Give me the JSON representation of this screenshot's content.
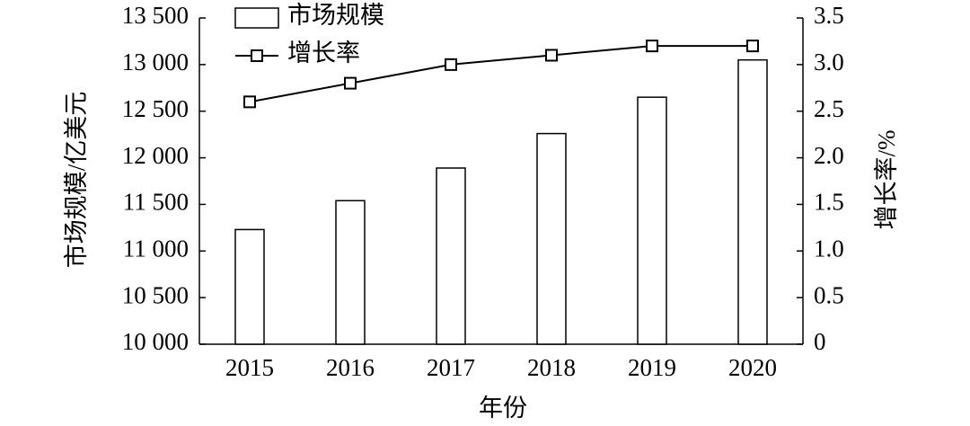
{
  "chart_data": {
    "type": "bar",
    "categories": [
      "2015",
      "2016",
      "2017",
      "2018",
      "2019",
      "2020"
    ],
    "series": [
      {
        "name": "市场规模",
        "type": "bar",
        "axis": "y",
        "color": "#ffffff",
        "values": [
          11230,
          11540,
          11890,
          12260,
          12650,
          13050
        ]
      },
      {
        "name": "增长率",
        "type": "line",
        "axis": "y2",
        "color": "#000000",
        "values": [
          2.6,
          2.8,
          3.0,
          3.1,
          3.2,
          3.2
        ]
      }
    ],
    "xlabel": "年份",
    "ylabel": "市场规模/亿美元",
    "y2label": "增长率/%",
    "ylim": [
      10000,
      13500
    ],
    "yticks": [
      {
        "value": 10000,
        "label": "10 000"
      },
      {
        "value": 10500,
        "label": "10 500"
      },
      {
        "value": 11000,
        "label": "11 000"
      },
      {
        "value": 11500,
        "label": "11 500"
      },
      {
        "value": 12000,
        "label": "12 000"
      },
      {
        "value": 12500,
        "label": "12 500"
      },
      {
        "value": 13000,
        "label": "13 000"
      },
      {
        "value": 13500,
        "label": "13 500"
      }
    ],
    "y2lim": [
      0,
      3.5
    ],
    "y2ticks": [
      0,
      0.5,
      {
        "value": 1,
        "label": "1.0"
      },
      1.5,
      {
        "value": 2,
        "label": "2.0"
      },
      2.5,
      {
        "value": 3,
        "label": "3.0"
      },
      3.5
    ],
    "grid": false
  }
}
